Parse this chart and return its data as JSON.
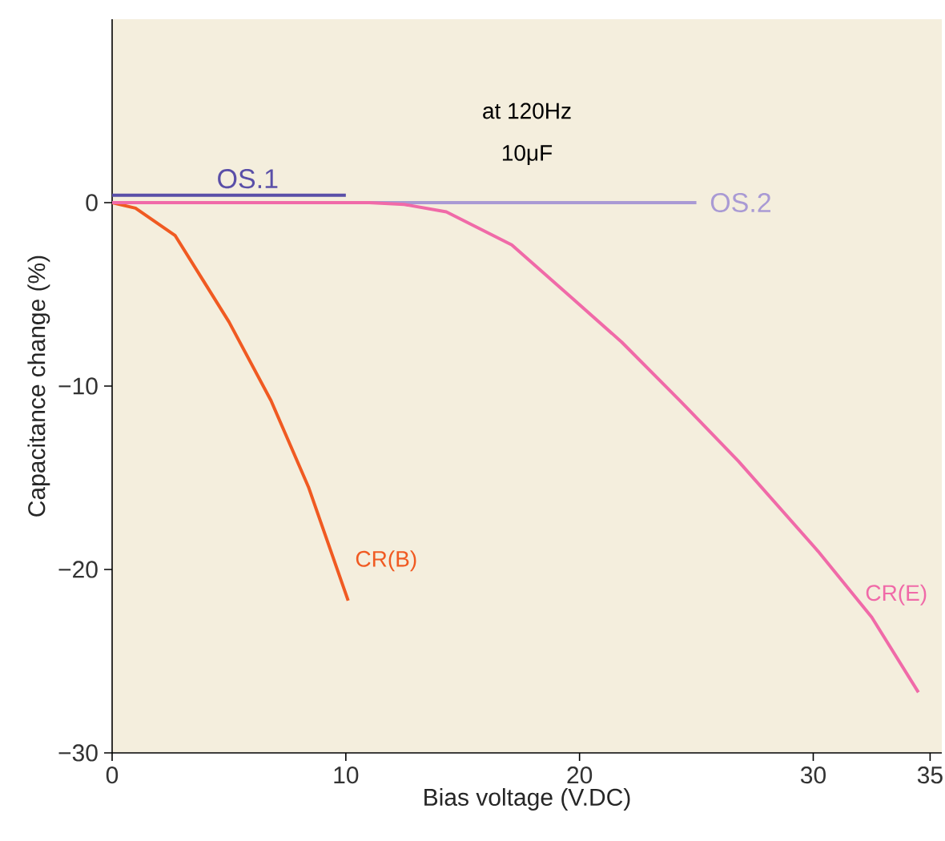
{
  "chart_data": {
    "type": "line",
    "xlabel": "Bias voltage (V.DC)",
    "ylabel": "Capacitance change (%)",
    "annotations": [
      "at 120Hz",
      "10μF"
    ],
    "xlim": [
      0,
      35.5
    ],
    "ylim": [
      -30,
      10
    ],
    "xticks": [
      0,
      10,
      20,
      30,
      35
    ],
    "yticks": [
      {
        "value": -30,
        "label": "−30"
      },
      {
        "value": -20,
        "label": "−20"
      },
      {
        "value": -10,
        "label": "−10"
      },
      0
    ],
    "grid": false,
    "line_style": "solid",
    "series": [
      {
        "name": "OS.1",
        "color": "#5a4fa8",
        "x": [
          0,
          10
        ],
        "values": [
          0.4,
          0.4
        ]
      },
      {
        "name": "OS.2",
        "color": "#a99ad4",
        "x": [
          0,
          25
        ],
        "values": [
          0,
          0
        ]
      },
      {
        "name": "CR(B)",
        "color": "#f05a22",
        "x": [
          0,
          1,
          2.7,
          5,
          6.8,
          8.4,
          10.1
        ],
        "values": [
          0,
          -0.3,
          -1.8,
          -6.5,
          -10.8,
          -15.5,
          -21.7
        ]
      },
      {
        "name": "CR(E)",
        "color": "#f06aa8",
        "x": [
          0,
          11,
          12.5,
          14.3,
          17.1,
          19.5,
          21.8,
          24.3,
          26.8,
          30.2,
          32.5,
          34.5
        ],
        "values": [
          0,
          0,
          -0.1,
          -0.5,
          -2.3,
          -5,
          -7.6,
          -10.8,
          -14.1,
          -19,
          -22.6,
          -26.7
        ]
      }
    ]
  }
}
